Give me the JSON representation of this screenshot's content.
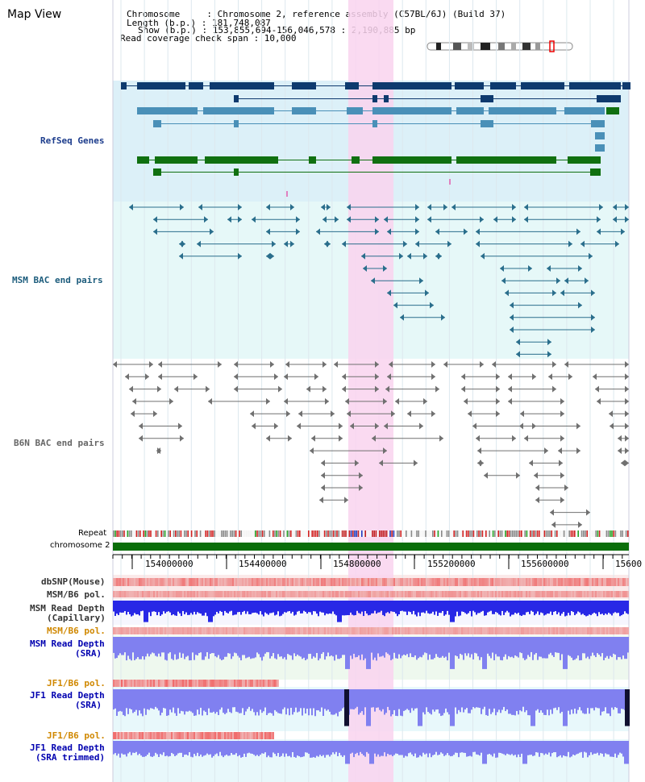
{
  "title": "Map View",
  "info": {
    "chromosome": "Chromosome     : Chromosome 2, reference assembly (C57BL/6J) (Build 37)",
    "length": "Length (b.p.) : 181,748,087",
    "show": "Show (b.p.) : 153,855,694-156,046,578 : 2,190,885 bp",
    "coverage": "Read coverage check span : 10,000"
  },
  "tracks": {
    "refseq": "RefSeq Genes",
    "msm_bac": "MSM BAC end pairs",
    "b6n_bac": "B6N BAC end pairs",
    "repeat": "Repeat",
    "chromosome": "chromosome 2",
    "dbsnp": "dbSNP(Mouse)",
    "msm_b6_pol_1": "MSM/B6 pol.",
    "msm_read_depth_cap_1": "MSM Read Depth",
    "msm_read_depth_cap_2": "(Capillary)",
    "msm_b6_pol_2": "MSM/B6 pol.",
    "msm_read_depth_sra_1": "MSM Read Depth",
    "msm_read_depth_sra_2": "(SRA)",
    "jf1_b6_pol_1": "JF1/B6 pol.",
    "jf1_read_depth_sra_1": "JF1 Read Depth",
    "jf1_read_depth_sra_2": "(SRA)",
    "jf1_b6_pol_2": "JF1/B6 pol.",
    "jf1_read_depth_trim_1": "JF1 Read Depth",
    "jf1_read_depth_trim_2": "(SRA trimmed)"
  },
  "axis": {
    "ticks": [
      "154000000",
      "154400000",
      "154800000",
      "155200000",
      "155600000",
      "15600"
    ]
  },
  "colors": {
    "highlight": "#f9d4ef",
    "refseq_bg": "#dcf0f8",
    "msm_bg": "#e6f8f8",
    "gene_dark": "#0e3a6e",
    "gene_mid": "#4a90b8",
    "gene_green": "#107010",
    "chrom_bar": "#0a6e0a",
    "depth_blue": "#2828e6",
    "depth_light": "#8080f0",
    "jf1_label": "#d08800",
    "depth_label": "#0000b0"
  }
}
